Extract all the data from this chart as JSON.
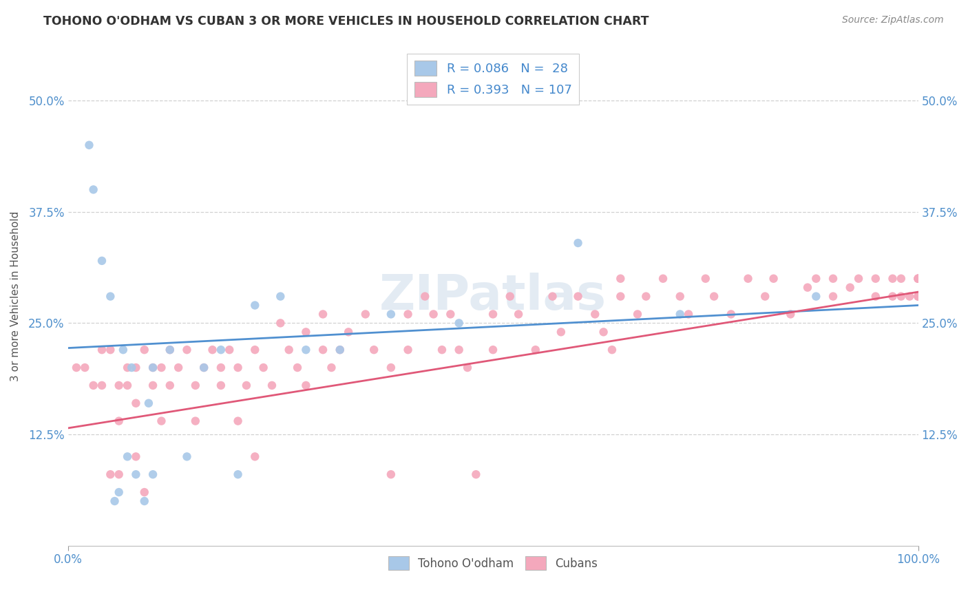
{
  "title": "TOHONO O'ODHAM VS CUBAN 3 OR MORE VEHICLES IN HOUSEHOLD CORRELATION CHART",
  "source": "Source: ZipAtlas.com",
  "ylabel": "3 or more Vehicles in Household",
  "legend_label1": "Tohono O'odham",
  "legend_label2": "Cubans",
  "r1": 0.086,
  "n1": 28,
  "r2": 0.393,
  "n2": 107,
  "xmin": 0.0,
  "xmax": 1.0,
  "ymin": 0.0,
  "ymax": 0.56,
  "yticks": [
    0.125,
    0.25,
    0.375,
    0.5
  ],
  "ytick_labels": [
    "12.5%",
    "25.0%",
    "37.5%",
    "50.0%"
  ],
  "xtick_positions": [
    0.0,
    1.0
  ],
  "xtick_labels": [
    "0.0%",
    "100.0%"
  ],
  "color1": "#a8c8e8",
  "color2": "#f4a8bc",
  "line_color1": "#5090d0",
  "line_color2": "#e05878",
  "watermark": "ZIPatlas",
  "line1_start_y": 0.222,
  "line1_end_y": 0.27,
  "line2_start_y": 0.132,
  "line2_end_y": 0.285,
  "scatter1_x": [
    0.025,
    0.03,
    0.04,
    0.05,
    0.055,
    0.06,
    0.065,
    0.07,
    0.075,
    0.08,
    0.09,
    0.095,
    0.1,
    0.1,
    0.12,
    0.14,
    0.16,
    0.18,
    0.2,
    0.22,
    0.25,
    0.28,
    0.32,
    0.38,
    0.46,
    0.6,
    0.72,
    0.88
  ],
  "scatter1_y": [
    0.45,
    0.4,
    0.32,
    0.28,
    0.05,
    0.06,
    0.22,
    0.1,
    0.2,
    0.08,
    0.05,
    0.16,
    0.08,
    0.2,
    0.22,
    0.1,
    0.2,
    0.22,
    0.08,
    0.27,
    0.28,
    0.22,
    0.22,
    0.26,
    0.25,
    0.34,
    0.26,
    0.28
  ],
  "scatter2_x": [
    0.01,
    0.02,
    0.03,
    0.04,
    0.04,
    0.05,
    0.05,
    0.06,
    0.06,
    0.06,
    0.07,
    0.07,
    0.08,
    0.08,
    0.08,
    0.09,
    0.09,
    0.1,
    0.1,
    0.11,
    0.11,
    0.12,
    0.12,
    0.13,
    0.14,
    0.15,
    0.15,
    0.16,
    0.17,
    0.18,
    0.18,
    0.19,
    0.2,
    0.2,
    0.21,
    0.22,
    0.22,
    0.23,
    0.24,
    0.25,
    0.26,
    0.27,
    0.28,
    0.28,
    0.3,
    0.3,
    0.31,
    0.32,
    0.33,
    0.35,
    0.36,
    0.38,
    0.38,
    0.4,
    0.4,
    0.42,
    0.43,
    0.44,
    0.45,
    0.46,
    0.47,
    0.48,
    0.5,
    0.5,
    0.52,
    0.53,
    0.55,
    0.57,
    0.58,
    0.6,
    0.62,
    0.63,
    0.64,
    0.65,
    0.65,
    0.67,
    0.68,
    0.7,
    0.72,
    0.73,
    0.75,
    0.76,
    0.78,
    0.8,
    0.82,
    0.83,
    0.85,
    0.87,
    0.88,
    0.9,
    0.9,
    0.92,
    0.93,
    0.95,
    0.95,
    0.97,
    0.97,
    0.98,
    0.98,
    0.99,
    1.0,
    1.0,
    1.0,
    1.0,
    1.0,
    1.0,
    1.0
  ],
  "scatter2_y": [
    0.2,
    0.2,
    0.18,
    0.22,
    0.18,
    0.08,
    0.22,
    0.18,
    0.14,
    0.08,
    0.2,
    0.18,
    0.1,
    0.16,
    0.2,
    0.06,
    0.22,
    0.2,
    0.18,
    0.14,
    0.2,
    0.22,
    0.18,
    0.2,
    0.22,
    0.18,
    0.14,
    0.2,
    0.22,
    0.18,
    0.2,
    0.22,
    0.14,
    0.2,
    0.18,
    0.1,
    0.22,
    0.2,
    0.18,
    0.25,
    0.22,
    0.2,
    0.18,
    0.24,
    0.22,
    0.26,
    0.2,
    0.22,
    0.24,
    0.26,
    0.22,
    0.2,
    0.08,
    0.26,
    0.22,
    0.28,
    0.26,
    0.22,
    0.26,
    0.22,
    0.2,
    0.08,
    0.26,
    0.22,
    0.28,
    0.26,
    0.22,
    0.28,
    0.24,
    0.28,
    0.26,
    0.24,
    0.22,
    0.28,
    0.3,
    0.26,
    0.28,
    0.3,
    0.28,
    0.26,
    0.3,
    0.28,
    0.26,
    0.3,
    0.28,
    0.3,
    0.26,
    0.29,
    0.3,
    0.28,
    0.3,
    0.29,
    0.3,
    0.28,
    0.3,
    0.28,
    0.3,
    0.28,
    0.3,
    0.28,
    0.3,
    0.28,
    0.3,
    0.28,
    0.3,
    0.28,
    0.3
  ]
}
